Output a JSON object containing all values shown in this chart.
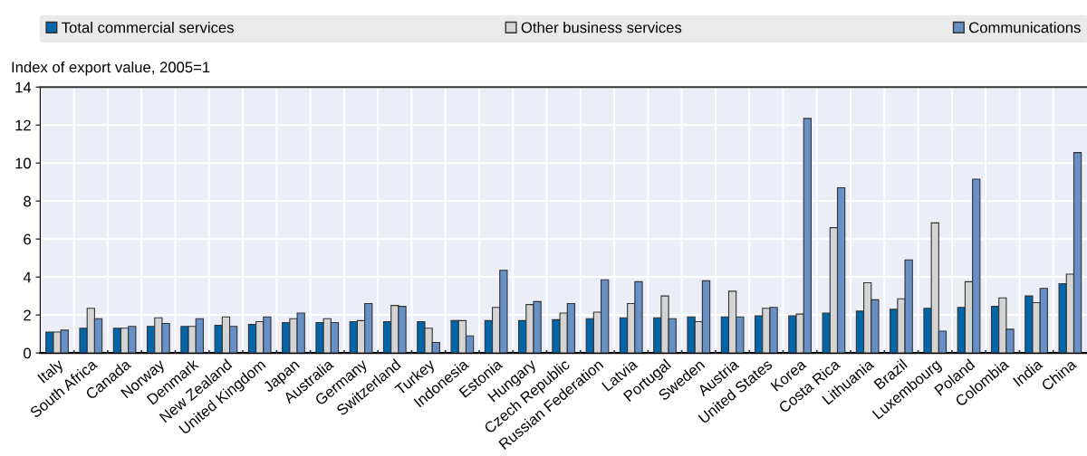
{
  "chart_data": {
    "type": "bar",
    "ylabel": "Index of export value, 2005=1",
    "categories": [
      "Italy",
      "South Africa",
      "Canada",
      "Norway",
      "Denmark",
      "New Zealand",
      "United Kingdom",
      "Japan",
      "Australia",
      "Germany",
      "Switzerland",
      "Turkey",
      "Indonesia",
      "Estonia",
      "Hungary",
      "Czech Republic",
      "Russian Federation",
      "Latvia",
      "Portugal",
      "Sweden",
      "Austria",
      "United States",
      "Korea",
      "Costa Rica",
      "Lithuania",
      "Brazil",
      "Luxembourg",
      "Poland",
      "Colombia",
      "India",
      "China"
    ],
    "series": [
      {
        "name": "Total commercial services",
        "color": "#0066a9",
        "values": [
          1.1,
          1.3,
          1.3,
          1.4,
          1.4,
          1.45,
          1.5,
          1.6,
          1.6,
          1.65,
          1.65,
          1.65,
          1.7,
          1.7,
          1.7,
          1.75,
          1.8,
          1.85,
          1.85,
          1.9,
          1.9,
          1.95,
          1.95,
          2.1,
          2.2,
          2.3,
          2.35,
          2.4,
          2.45,
          3.0,
          3.65
        ]
      },
      {
        "name": "Other business services",
        "color": "#d4d4d4",
        "values": [
          1.1,
          2.35,
          1.3,
          1.85,
          1.4,
          1.9,
          1.65,
          1.8,
          1.8,
          1.7,
          2.5,
          1.3,
          1.7,
          2.4,
          2.55,
          2.1,
          2.15,
          2.6,
          3.0,
          1.65,
          3.25,
          2.35,
          2.05,
          6.6,
          3.7,
          2.85,
          6.85,
          3.75,
          2.9,
          2.65,
          4.15
        ]
      },
      {
        "name": "Communications",
        "color": "#6690c6",
        "values": [
          1.2,
          1.8,
          1.4,
          1.55,
          1.8,
          1.4,
          1.9,
          2.1,
          1.6,
          2.6,
          2.45,
          0.55,
          0.9,
          4.35,
          2.7,
          2.6,
          3.85,
          3.75,
          1.8,
          3.8,
          1.9,
          2.4,
          12.35,
          8.7,
          2.8,
          4.9,
          1.15,
          9.15,
          1.25,
          3.4,
          10.55
        ]
      }
    ],
    "ylim": [
      0,
      14
    ],
    "yticks": [
      0,
      2,
      4,
      6,
      8,
      10,
      12,
      14
    ],
    "grid": true,
    "legend": "top"
  }
}
